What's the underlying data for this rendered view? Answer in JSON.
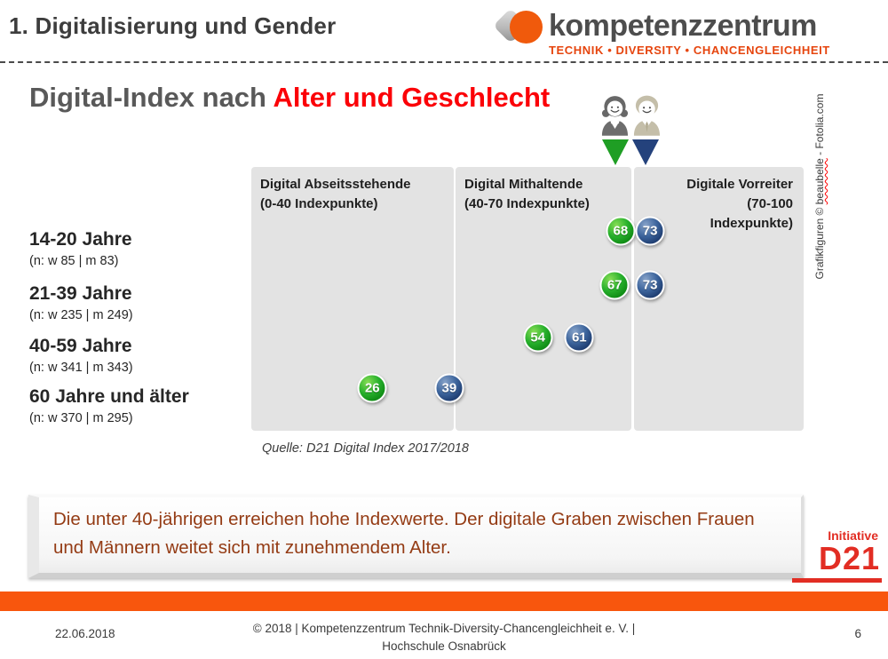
{
  "header": {
    "section_title": "1. Digitalisierung und Gender",
    "logo": {
      "name": "kompetenzzentrum",
      "tagline": "TECHNIK • DIVERSITY • CHANCENGLEICHHEIT",
      "accent_color": "#f05a0c",
      "tagline_color": "#e6450e"
    }
  },
  "title": {
    "prefix": "Digital-Index nach ",
    "highlight": "Alter und Geschlecht",
    "highlight_color": "#fb0007"
  },
  "legend": {
    "women_color": "#1f9e24",
    "men_color": "#24427c"
  },
  "chart_data": {
    "type": "scatter",
    "x_axis_label": "Indexpunkte",
    "x_range": [
      0,
      100
    ],
    "zones": [
      {
        "title": "Digital Abseitsstehende",
        "range_label": "(0-40 Indexpunkte)",
        "range": [
          0,
          40
        ]
      },
      {
        "title": "Digital Mithaltende",
        "range_label": "(40-70 Indexpunkte)",
        "range": [
          40,
          70
        ]
      },
      {
        "title": "Digitale Vorreiter",
        "range_label": "(70-100\nIndexpunkte)",
        "range": [
          70,
          100
        ]
      }
    ],
    "groups": [
      {
        "label": "14-20 Jahre",
        "sample": "(n: w 85 | m 83)",
        "women": 68,
        "men": 73
      },
      {
        "label": "21-39 Jahre",
        "sample": "(n: w 235 | m 249)",
        "women": 67,
        "men": 73
      },
      {
        "label": "40-59 Jahre",
        "sample": "(n: w 341 | m 343)",
        "women": 54,
        "men": 61
      },
      {
        "label": "60 Jahre und älter",
        "sample": "(n: w 370 | m 295)",
        "women": 26,
        "men": 39
      }
    ],
    "series_colors": {
      "women": "#1f9e24",
      "men": "#24427c"
    },
    "source": "Quelle: D21 Digital Index 2017/2018"
  },
  "credit": {
    "prefix": "Grafikfiguren © ",
    "marked_word": "beaubelle",
    "suffix": " - Fotolia.com"
  },
  "callout": {
    "text": "Die unter 40-jährigen erreichen hohe Indexwerte. Der digitale Graben zwischen Frauen und Männern weitet sich mit zunehmendem Alter.",
    "text_color": "#943b14"
  },
  "d21_logo": {
    "line1": "Initiative",
    "line2": "D21",
    "color": "#e22d23"
  },
  "footer": {
    "date": "22.06.2018",
    "copyright": "© 2018 | Kompetenzzentrum Technik-Diversity-Chancengleichheit e. V. | Hochschule Osnabrück",
    "page_number": "6",
    "bar_color": "#f8560d"
  }
}
